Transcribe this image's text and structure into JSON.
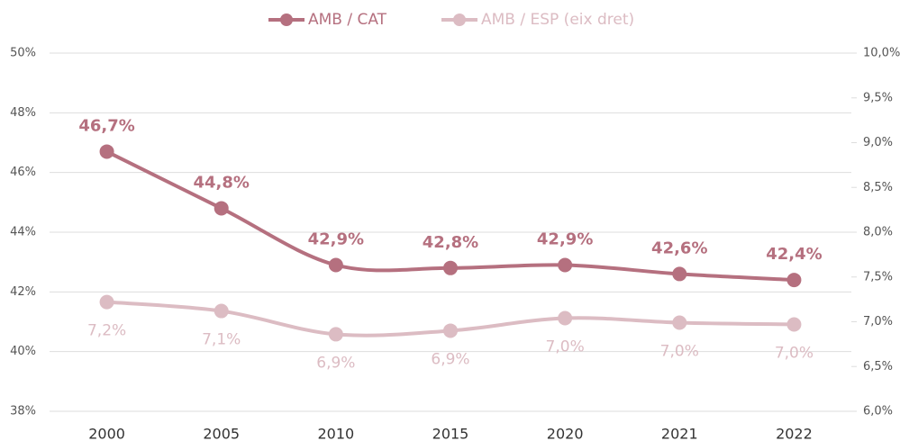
{
  "chart_data": {
    "type": "line",
    "categories": [
      "2000",
      "2005",
      "2010",
      "2015",
      "2020",
      "2021",
      "2022"
    ],
    "series": [
      {
        "name": "AMB / CAT",
        "color": "#b5707f",
        "values": [
          46.7,
          44.8,
          42.9,
          42.8,
          42.9,
          42.6,
          42.4
        ],
        "value_labels": [
          "46,7%",
          "44,8%",
          "42,9%",
          "42,8%",
          "42,9%",
          "42,6%",
          "42,4%"
        ]
      },
      {
        "name": "AMB / ESP (eix dret)",
        "color": "#dcbcc3",
        "axis": "y2",
        "values": [
          7.22,
          7.12,
          6.86,
          6.9,
          7.04,
          6.99,
          6.97
        ],
        "value_labels": [
          "7,2%",
          "7,1%",
          "6,9%",
          "6,9%",
          "7,0%",
          "7,0%",
          "7,0%"
        ]
      }
    ],
    "ylim": [
      38,
      50
    ],
    "yticks": [
      {
        "value": 38,
        "label": "38%"
      },
      {
        "value": 40,
        "label": "40%"
      },
      {
        "value": 42,
        "label": "42%"
      },
      {
        "value": 44,
        "label": "44%"
      },
      {
        "value": 46,
        "label": "46%"
      },
      {
        "value": 48,
        "label": "48%"
      },
      {
        "value": 50,
        "label": "50%"
      }
    ],
    "y2lim": [
      6,
      10
    ],
    "y2ticks": [
      {
        "value": 6,
        "label": "6,0%"
      },
      {
        "value": 6.5,
        "label": "6,5%"
      },
      {
        "value": 7,
        "label": "7,0%"
      },
      {
        "value": 7.5,
        "label": "7,5%"
      },
      {
        "value": 8,
        "label": "8,0%"
      },
      {
        "value": 8.5,
        "label": "8,5%"
      },
      {
        "value": 9,
        "label": "9,0%"
      },
      {
        "value": 9.5,
        "label": "9,5%"
      },
      {
        "value": 10,
        "label": "10,0%"
      }
    ],
    "grid": true,
    "legend": "top"
  }
}
